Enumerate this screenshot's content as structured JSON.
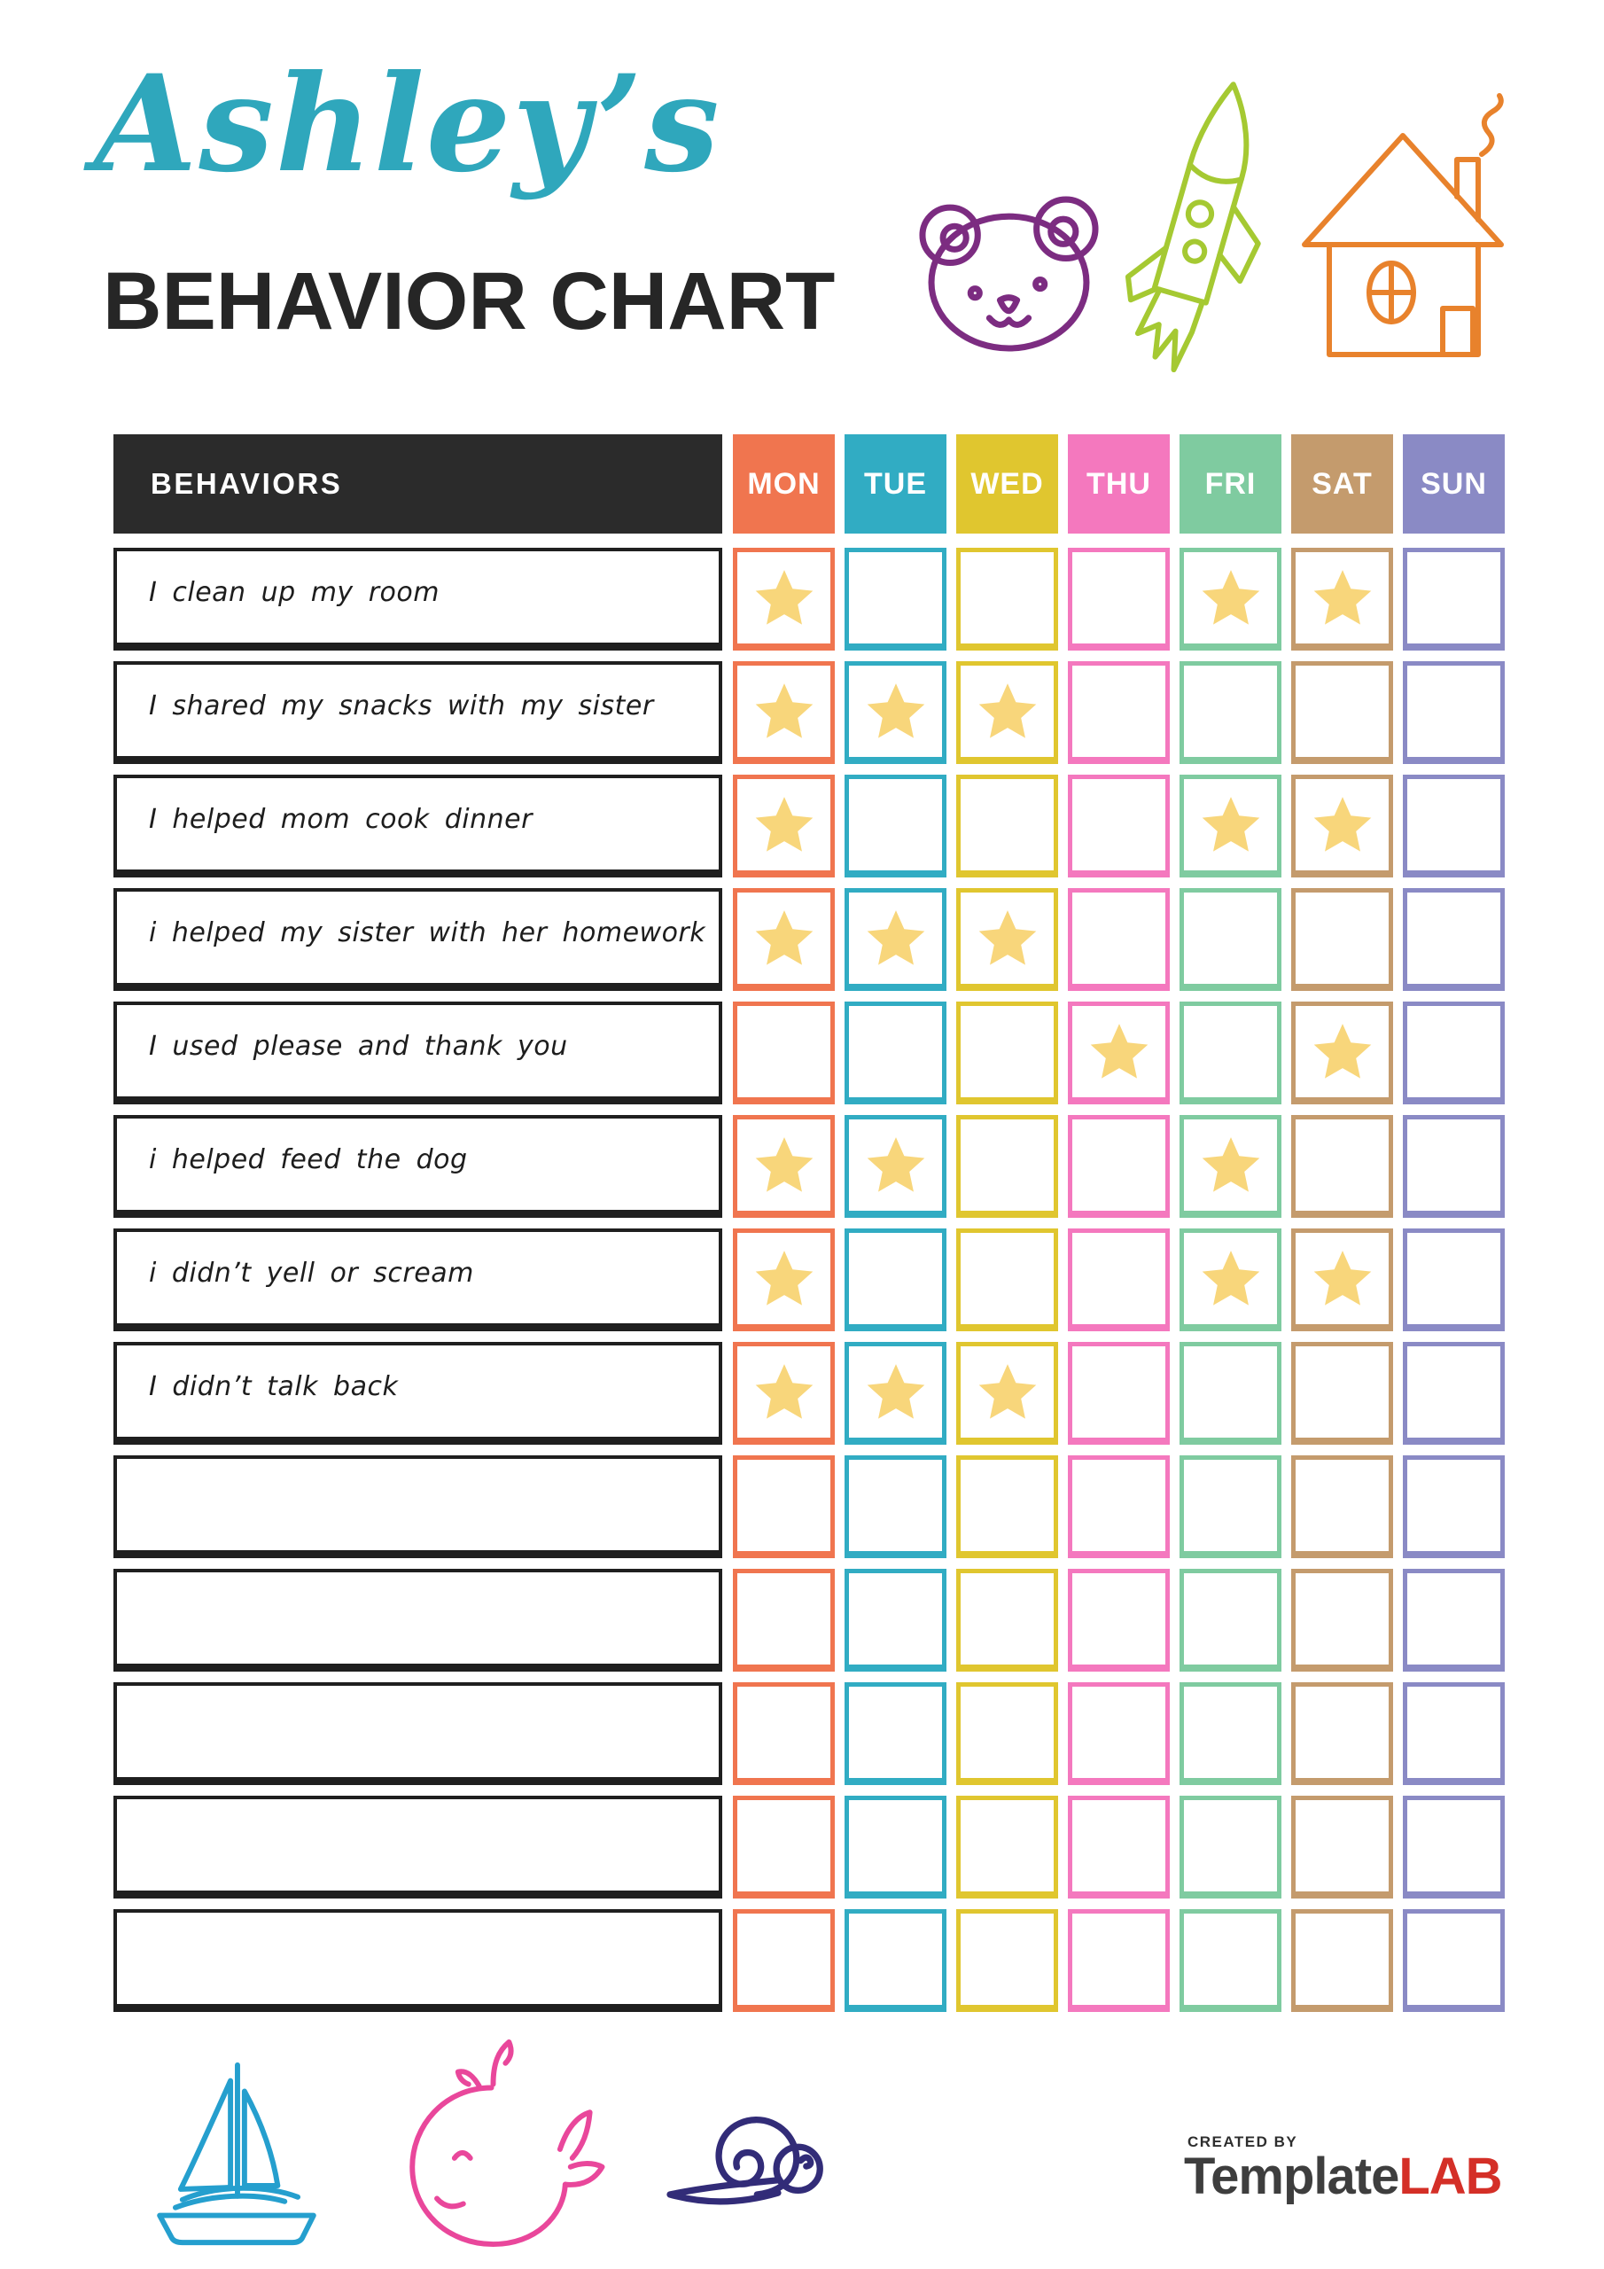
{
  "header": {
    "name_script": "Ashley’s",
    "name_color": "#2FA7BC",
    "title": "BEHAVIOR CHART",
    "title_color": "#262626"
  },
  "table": {
    "behaviors_header": "BEHAVIORS",
    "header_bg": "#2B2B2B",
    "star_color": "#F8D67B",
    "days": [
      {
        "label": "MON",
        "color": "#F0754F"
      },
      {
        "label": "TUE",
        "color": "#31ACC3"
      },
      {
        "label": "WED",
        "color": "#E0C62F"
      },
      {
        "label": "THU",
        "color": "#F478BE"
      },
      {
        "label": "FRI",
        "color": "#7FCBA0"
      },
      {
        "label": "SAT",
        "color": "#C49B6D"
      },
      {
        "label": "SUN",
        "color": "#8A8AC5"
      }
    ],
    "rows": [
      {
        "label": "I clean up my room",
        "stars": [
          1,
          0,
          0,
          0,
          1,
          1,
          0
        ]
      },
      {
        "label": "I shared my snacks with my sister",
        "stars": [
          1,
          1,
          1,
          0,
          0,
          0,
          0
        ]
      },
      {
        "label": "I helped mom cook dinner",
        "stars": [
          1,
          0,
          0,
          0,
          1,
          1,
          0
        ]
      },
      {
        "label": "i helped my sister with her homework",
        "stars": [
          1,
          1,
          1,
          0,
          0,
          0,
          0
        ]
      },
      {
        "label": "I used please and thank you",
        "stars": [
          0,
          0,
          0,
          1,
          0,
          1,
          0
        ]
      },
      {
        "label": "i helped feed the dog",
        "stars": [
          1,
          1,
          0,
          0,
          1,
          0,
          0
        ]
      },
      {
        "label": "i didn’t yell or scream",
        "stars": [
          1,
          0,
          0,
          0,
          1,
          1,
          0
        ]
      },
      {
        "label": "I didn’t talk back",
        "stars": [
          1,
          1,
          1,
          0,
          0,
          0,
          0
        ]
      },
      {
        "label": "",
        "stars": [
          0,
          0,
          0,
          0,
          0,
          0,
          0
        ]
      },
      {
        "label": "",
        "stars": [
          0,
          0,
          0,
          0,
          0,
          0,
          0
        ]
      },
      {
        "label": "",
        "stars": [
          0,
          0,
          0,
          0,
          0,
          0,
          0
        ]
      },
      {
        "label": "",
        "stars": [
          0,
          0,
          0,
          0,
          0,
          0,
          0
        ]
      },
      {
        "label": "",
        "stars": [
          0,
          0,
          0,
          0,
          0,
          0,
          0
        ]
      }
    ]
  },
  "doodles": {
    "colors": {
      "bear": "#7C2C81",
      "rocket": "#A5C932",
      "house": "#E8822C",
      "sailboat": "#259FCE",
      "whale": "#E9479B",
      "snail": "#322C78"
    }
  },
  "footer": {
    "created_by": "CREATED BY",
    "brand_template": "Template",
    "brand_template_color": "#3E3E3E",
    "brand_lab": "LAB",
    "brand_lab_color": "#D42F27"
  }
}
